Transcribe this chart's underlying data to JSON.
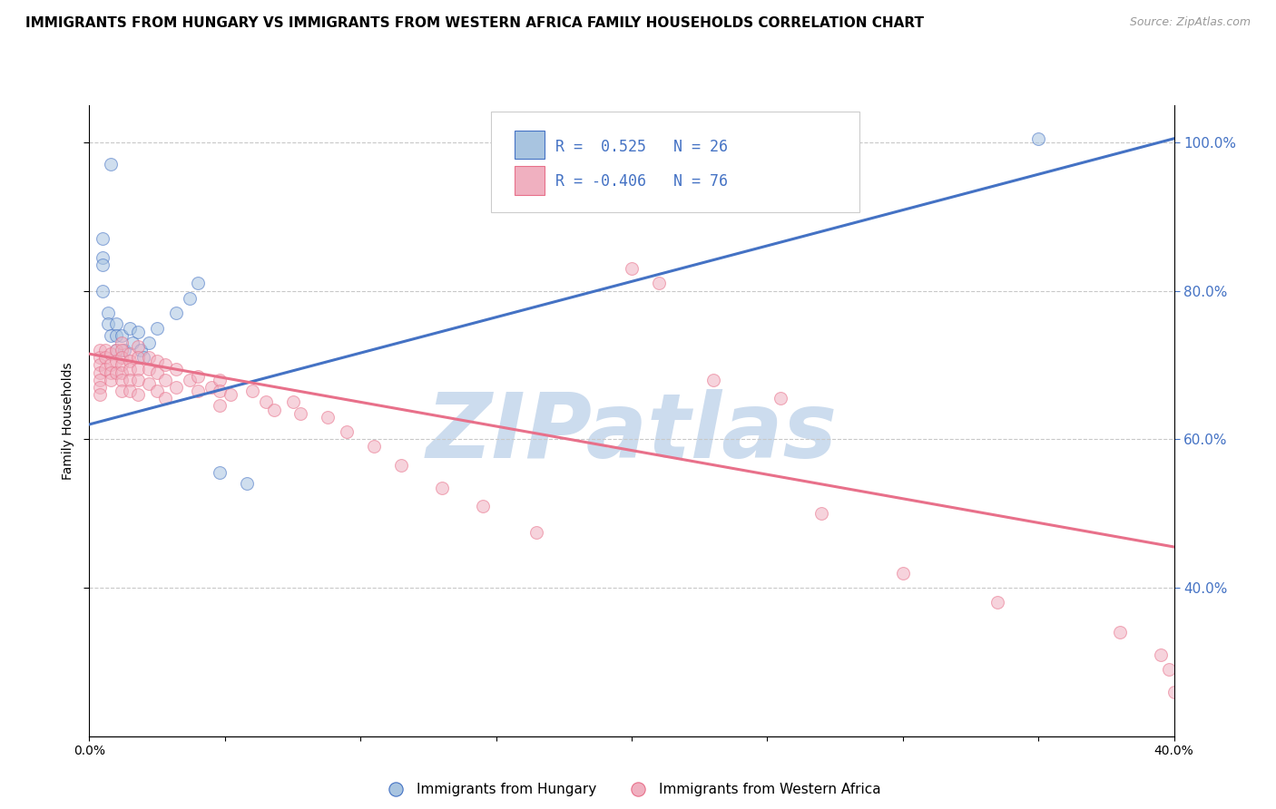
{
  "title": "IMMIGRANTS FROM HUNGARY VS IMMIGRANTS FROM WESTERN AFRICA FAMILY HOUSEHOLDS CORRELATION CHART",
  "source": "Source: ZipAtlas.com",
  "ylabel": "Family Households",
  "watermark": "ZIPatlas",
  "xlim": [
    0.0,
    0.4
  ],
  "ylim": [
    0.2,
    1.05
  ],
  "legend_r1": "R =  0.525   N = 26",
  "legend_r2": "R = -0.406   N = 76",
  "blue_scatter_x": [
    0.008,
    0.005,
    0.005,
    0.005,
    0.005,
    0.007,
    0.007,
    0.008,
    0.01,
    0.01,
    0.01,
    0.012,
    0.013,
    0.015,
    0.016,
    0.018,
    0.019,
    0.02,
    0.022,
    0.025,
    0.032,
    0.037,
    0.04,
    0.048,
    0.058,
    0.35
  ],
  "blue_scatter_y": [
    0.97,
    0.87,
    0.845,
    0.835,
    0.8,
    0.77,
    0.755,
    0.74,
    0.755,
    0.74,
    0.72,
    0.74,
    0.72,
    0.75,
    0.73,
    0.745,
    0.72,
    0.71,
    0.73,
    0.75,
    0.77,
    0.79,
    0.81,
    0.555,
    0.54,
    1.005
  ],
  "pink_scatter_x": [
    0.004,
    0.004,
    0.004,
    0.004,
    0.004,
    0.004,
    0.004,
    0.006,
    0.006,
    0.006,
    0.008,
    0.008,
    0.008,
    0.008,
    0.01,
    0.01,
    0.01,
    0.012,
    0.012,
    0.012,
    0.012,
    0.012,
    0.012,
    0.012,
    0.015,
    0.015,
    0.015,
    0.015,
    0.015,
    0.018,
    0.018,
    0.018,
    0.018,
    0.018,
    0.022,
    0.022,
    0.022,
    0.025,
    0.025,
    0.025,
    0.028,
    0.028,
    0.028,
    0.032,
    0.032,
    0.037,
    0.04,
    0.04,
    0.045,
    0.048,
    0.048,
    0.048,
    0.052,
    0.06,
    0.065,
    0.068,
    0.075,
    0.078,
    0.088,
    0.095,
    0.105,
    0.115,
    0.13,
    0.145,
    0.165,
    0.2,
    0.21,
    0.23,
    0.255,
    0.27,
    0.3,
    0.335,
    0.38,
    0.395,
    0.398,
    0.4
  ],
  "pink_scatter_y": [
    0.72,
    0.71,
    0.7,
    0.69,
    0.68,
    0.67,
    0.66,
    0.72,
    0.71,
    0.695,
    0.715,
    0.7,
    0.69,
    0.68,
    0.72,
    0.705,
    0.69,
    0.73,
    0.72,
    0.71,
    0.7,
    0.69,
    0.68,
    0.665,
    0.715,
    0.705,
    0.695,
    0.68,
    0.665,
    0.725,
    0.71,
    0.695,
    0.68,
    0.66,
    0.71,
    0.695,
    0.675,
    0.705,
    0.69,
    0.665,
    0.7,
    0.68,
    0.655,
    0.695,
    0.67,
    0.68,
    0.685,
    0.665,
    0.67,
    0.68,
    0.665,
    0.645,
    0.66,
    0.665,
    0.65,
    0.64,
    0.65,
    0.635,
    0.63,
    0.61,
    0.59,
    0.565,
    0.535,
    0.51,
    0.475,
    0.83,
    0.81,
    0.68,
    0.655,
    0.5,
    0.42,
    0.38,
    0.34,
    0.31,
    0.29,
    0.26
  ],
  "blue_line_x": [
    0.0,
    0.4
  ],
  "blue_line_y": [
    0.62,
    1.005
  ],
  "pink_line_x": [
    0.0,
    0.4
  ],
  "pink_line_y": [
    0.715,
    0.455
  ],
  "scatter_size": 100,
  "scatter_alpha": 0.55,
  "line_width": 2.2,
  "blue_color": "#4472c4",
  "pink_color": "#e8708a",
  "blue_scatter_color": "#a8c4e0",
  "pink_scatter_color": "#f0b0c0",
  "grid_color": "#c8c8c8",
  "background_color": "#ffffff",
  "watermark_color": "#ccdcee",
  "watermark_fontsize": 72,
  "title_fontsize": 11,
  "axis_fontsize": 10,
  "legend_fontsize": 12,
  "right_axis_color": "#4472c4"
}
